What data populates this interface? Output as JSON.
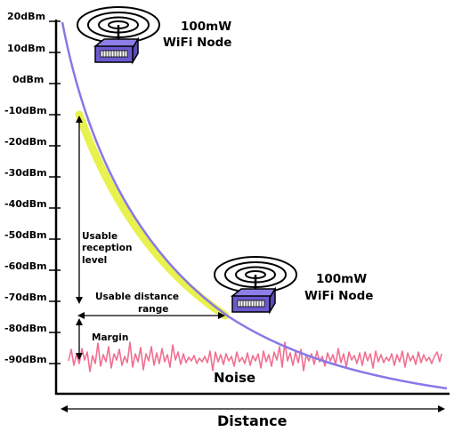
{
  "y_axis": {
    "ticks": [
      "20dBm",
      "10dBm",
      "0dBm",
      "-10dBm",
      "-20dBm",
      "-30dBm",
      "-40dBm",
      "-50dBm",
      "-60dBm",
      "-70dBm",
      "-80dBm",
      "-90dBm"
    ]
  },
  "x_axis": {
    "label": "Distance"
  },
  "node_top": {
    "line1": "100mW",
    "line2": "WiFi Node",
    "icon": "wifi-router-icon"
  },
  "node_bottom": {
    "line1": "100mW",
    "line2": "WiFi Node",
    "icon": "wifi-router-icon"
  },
  "annotations": {
    "usable_reception": [
      "Usable",
      "reception",
      "level"
    ],
    "usable_distance": [
      "Usable distance",
      "range"
    ],
    "margin": "Margin",
    "noise": "Noise"
  },
  "colors": {
    "signal_curve": "#8878e8",
    "usable_highlight": "#e6f03a",
    "noise": "#f07090",
    "router_body": "#6a5acd"
  }
}
